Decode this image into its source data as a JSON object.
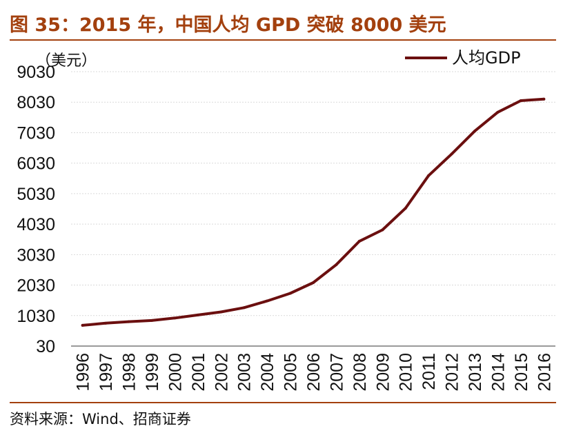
{
  "header": {
    "title": "图 35：2015 年，中国人均 GPD 突破 8000 美元"
  },
  "footer": {
    "source": "资料来源：Wind、招商证券"
  },
  "chart_data": {
    "type": "line",
    "title": "图 35：2015 年，中国人均 GPD 突破 8000 美元",
    "ylabel": "（美元）",
    "xlabel": "",
    "ylim": [
      30,
      9030
    ],
    "yticks": [
      30,
      1030,
      2030,
      3030,
      4030,
      5030,
      6030,
      7030,
      8030,
      9030
    ],
    "grid": true,
    "legend": "top-right",
    "categories": [
      "1996",
      "1997",
      "1998",
      "1999",
      "2000",
      "2001",
      "2002",
      "2003",
      "2004",
      "2005",
      "2006",
      "2007",
      "2008",
      "2009",
      "2010",
      "2011",
      "2012",
      "2013",
      "2014",
      "2015",
      "2016"
    ],
    "series": [
      {
        "name": "人均GDP",
        "color": "#6b0f0f",
        "values": [
          710,
          780,
          830,
          870,
          950,
          1050,
          1150,
          1290,
          1510,
          1760,
          2110,
          2700,
          3470,
          3840,
          4550,
          5620,
          6330,
          7080,
          7700,
          8080,
          8130
        ]
      }
    ]
  }
}
